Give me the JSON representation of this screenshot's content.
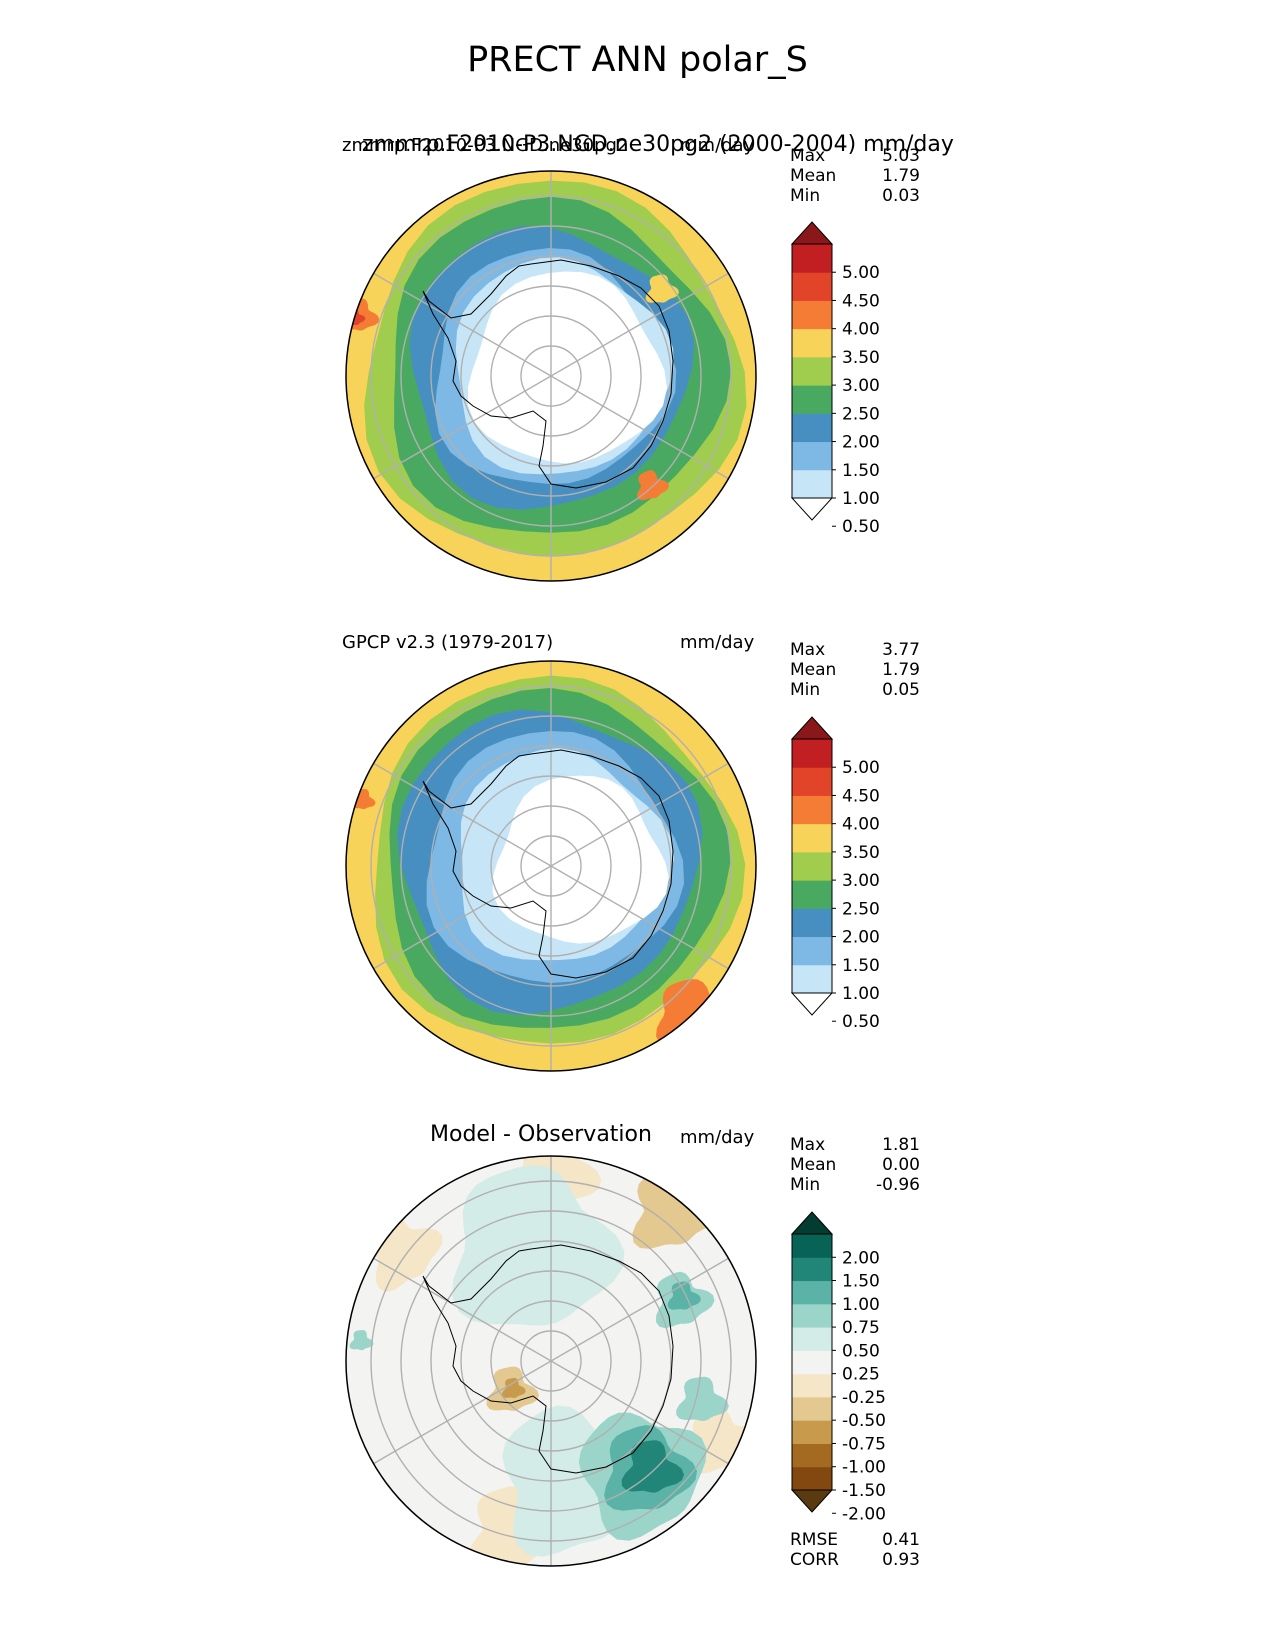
{
  "title": "PRECT ANN polar_S",
  "panels": [
    {
      "left_label": "zmmrp.F2010-P3.NGD.ne30pg2",
      "overlap_label": "zmmrp.F2010-P3.NGD.ne30pg2 (2000-2004) mm/day",
      "right_label": "mm/day",
      "stats": [
        {
          "name": "Max",
          "value": "5.03"
        },
        {
          "name": "Mean",
          "value": "1.79"
        },
        {
          "name": "Min",
          "value": "0.03"
        }
      ],
      "colorbar": {
        "ticks": [
          "5.00",
          "4.50",
          "4.00",
          "3.50",
          "3.00",
          "2.50",
          "2.00",
          "1.50",
          "1.00",
          "0.50"
        ],
        "colors": [
          "#ffffff",
          "#c6e6f7",
          "#7db9e4",
          "#478fc1",
          "#4aa961",
          "#a1cd4e",
          "#f8d359",
          "#f47c35",
          "#e2442a",
          "#c21f23",
          "#8a171a"
        ]
      }
    },
    {
      "left_label": "GPCP v2.3 (1979-2017)",
      "right_label": "mm/day",
      "stats": [
        {
          "name": "Max",
          "value": "3.77"
        },
        {
          "name": "Mean",
          "value": "1.79"
        },
        {
          "name": "Min",
          "value": "0.05"
        }
      ],
      "colorbar": {
        "ticks": [
          "5.00",
          "4.50",
          "4.00",
          "3.50",
          "3.00",
          "2.50",
          "2.00",
          "1.50",
          "1.00",
          "0.50"
        ],
        "colors": [
          "#ffffff",
          "#c6e6f7",
          "#7db9e4",
          "#478fc1",
          "#4aa961",
          "#a1cd4e",
          "#f8d359",
          "#f47c35",
          "#e2442a",
          "#c21f23",
          "#8a171a"
        ]
      }
    },
    {
      "center_label": "Model - Observation",
      "right_label": "mm/day",
      "stats": [
        {
          "name": "Max",
          "value": "1.81"
        },
        {
          "name": "Mean",
          "value": "0.00"
        },
        {
          "name": "Min",
          "value": "-0.96"
        }
      ],
      "colorbar": {
        "ticks": [
          "2.00",
          "1.50",
          "1.00",
          "0.75",
          "0.50",
          "0.25",
          "-0.25",
          "-0.50",
          "-0.75",
          "-1.00",
          "-1.50",
          "-2.00"
        ],
        "colors": [
          "#5a3a10",
          "#82480f",
          "#a56a22",
          "#c89b4c",
          "#e3c990",
          "#f4e6c7",
          "#f3f3f2",
          "#d4ece7",
          "#9bd5ca",
          "#5ab3a6",
          "#218677",
          "#066355",
          "#033d31"
        ]
      },
      "metrics": [
        {
          "name": "RMSE",
          "value": "0.41"
        },
        {
          "name": "CORR",
          "value": "0.93"
        }
      ]
    }
  ],
  "chart_data": [
    {
      "type": "heatmap",
      "projection": "south polar stereographic",
      "title": "zmmrp.F2010-P3.NGD.ne30pg2",
      "units": "mm/day",
      "levels": [
        0.5,
        1.0,
        1.5,
        2.0,
        2.5,
        3.0,
        3.5,
        4.0,
        4.5,
        5.0
      ],
      "colorbar_extend": "both",
      "stats": {
        "max": 5.03,
        "mean": 1.79,
        "min": 0.03
      },
      "map_colors": {
        "c0": "#ffffff",
        "c1": "#c6e6f7",
        "c2": "#7db9e4",
        "c3": "#478fc1",
        "c4": "#4aa961",
        "c5": "#a1cd4e",
        "c6": "#f8d359",
        "c7": "#f47c35",
        "c8": "#e2442a"
      }
    },
    {
      "type": "heatmap",
      "projection": "south polar stereographic",
      "title": "GPCP v2.3 (1979-2017)",
      "units": "mm/day",
      "levels": [
        0.5,
        1.0,
        1.5,
        2.0,
        2.5,
        3.0,
        3.5,
        4.0,
        4.5,
        5.0
      ],
      "colorbar_extend": "both",
      "stats": {
        "max": 3.77,
        "mean": 1.79,
        "min": 0.05
      },
      "map_colors": {
        "c0": "#ffffff",
        "c1": "#c6e6f7",
        "c2": "#7db9e4",
        "c3": "#478fc1",
        "c4": "#4aa961",
        "c5": "#a1cd4e",
        "c6": "#f8d359",
        "c7": "#f47c35"
      }
    },
    {
      "type": "heatmap",
      "projection": "south polar stereographic",
      "title": "Model - Observation",
      "units": "mm/day",
      "levels": [
        -2.0,
        -1.5,
        -1.0,
        -0.75,
        -0.5,
        -0.25,
        0.25,
        0.5,
        0.75,
        1.0,
        1.5,
        2.0
      ],
      "colorbar_extend": "both",
      "stats": {
        "max": 1.81,
        "mean": 0.0,
        "min": -0.96
      },
      "metrics": {
        "rmse": 0.41,
        "corr": 0.93
      },
      "map_colors": {
        "neutral": "#f3f3f2",
        "pos1": "#d4ece7",
        "pos2": "#9bd5ca",
        "pos3": "#5ab3a6",
        "pos4": "#218677",
        "neg1": "#f4e6c7",
        "neg2": "#e3c990",
        "neg3": "#c89b4c"
      }
    }
  ]
}
